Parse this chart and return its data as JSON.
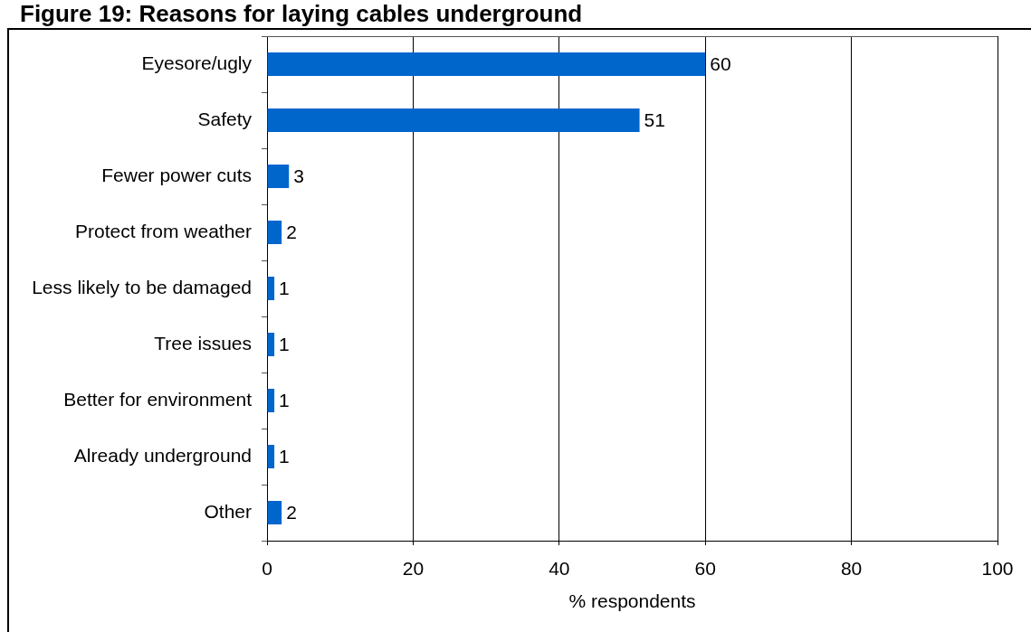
{
  "chart_data": {
    "type": "bar",
    "title": "Figure 19: Reasons for laying cables underground",
    "orientation": "horizontal",
    "categories": [
      "Eyesore/ugly",
      "Safety",
      "Fewer power cuts",
      "Protect from weather",
      "Less likely to be damaged",
      "Tree issues",
      "Better for environment",
      "Already underground",
      "Other"
    ],
    "values": [
      60,
      51,
      3,
      2,
      1,
      1,
      1,
      1,
      2
    ],
    "color": "#0066cc",
    "xlim": [
      0,
      100
    ],
    "xticks": [
      0,
      20,
      40,
      60,
      80,
      100
    ],
    "xlabel": "% respondents",
    "grid": "x",
    "data_labels": true
  }
}
